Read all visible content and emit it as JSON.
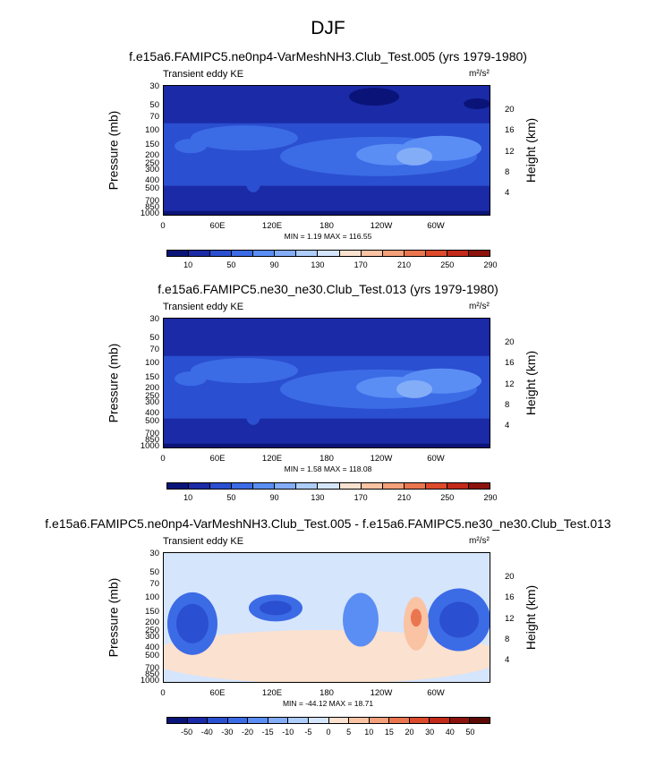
{
  "title": "DJF",
  "y_ticks_left": [
    "30",
    "50",
    "70",
    "100",
    "150",
    "200",
    "250",
    "300",
    "400",
    "500",
    "700",
    "850",
    "1000"
  ],
  "y_ticks_right": [
    "20",
    "16",
    "12",
    "8",
    "4"
  ],
  "x_ticks": [
    "0",
    "60E",
    "120E",
    "180",
    "120W",
    "60W"
  ],
  "ylabel_left": "Pressure (mb)",
  "ylabel_right": "Height (km)",
  "colors": {
    "kinetic": [
      "#0a1478",
      "#1b2aa6",
      "#2a4fd0",
      "#3c6be6",
      "#5a8ef5",
      "#84adf8",
      "#aecdfb",
      "#d5e5fc",
      "#fbe1cf",
      "#f9c3a4",
      "#f4a07a",
      "#ea7650",
      "#dc4b2c",
      "#c22a1a",
      "#8c130c"
    ],
    "diff": [
      "#0a1478",
      "#1b2aa6",
      "#2a4fd0",
      "#3c6be6",
      "#5a8ef5",
      "#84adf8",
      "#aecdfb",
      "#d5e5fc",
      "#fbe1cf",
      "#f9c3a4",
      "#f4a07a",
      "#ea7650",
      "#dc4b2c",
      "#c22a1a",
      "#8c130c",
      "#5c0a05"
    ]
  },
  "chart_data": [
    {
      "type": "heatmap",
      "title": "f.e15a6.FAMIPC5.ne0np4-VarMeshNH3.Club_Test.005 (yrs 1979-1980)",
      "left_label": "Transient eddy KE",
      "units": "m²/s²",
      "stats": "MIN =   1.19  MAX = 116.55",
      "x_range": [
        0,
        360
      ],
      "pressure_range_mb": [
        30,
        1000
      ],
      "colorbar_labels": [
        "10",
        "50",
        "90",
        "130",
        "170",
        "210",
        "250",
        "290"
      ],
      "regions": [
        {
          "name": "upper-background",
          "level": 0
        },
        {
          "name": "main-band",
          "level": 2
        },
        {
          "name": "jet-core-east",
          "level": 5
        },
        {
          "name": "jet-core-mid",
          "level": 4
        },
        {
          "name": "lower-band",
          "level": 1
        }
      ]
    },
    {
      "type": "heatmap",
      "title": "f.e15a6.FAMIPC5.ne30_ne30.Club_Test.013 (yrs 1979-1980)",
      "left_label": "Transient eddy KE",
      "units": "m²/s²",
      "stats": "MIN =   1.58  MAX = 118.08",
      "x_range": [
        0,
        360
      ],
      "pressure_range_mb": [
        30,
        1000
      ],
      "colorbar_labels": [
        "10",
        "50",
        "90",
        "130",
        "170",
        "210",
        "250",
        "290"
      ],
      "regions": [
        {
          "name": "upper-background",
          "level": 1
        },
        {
          "name": "main-band",
          "level": 2
        },
        {
          "name": "jet-core-east",
          "level": 5
        },
        {
          "name": "jet-core-mid",
          "level": 4
        },
        {
          "name": "lower-band",
          "level": 1
        }
      ]
    },
    {
      "type": "heatmap",
      "title": "f.e15a6.FAMIPC5.ne0np4-VarMeshNH3.Club_Test.005 - f.e15a6.FAMIPC5.ne30_ne30.Club_Test.013",
      "left_label": "Transient eddy KE",
      "units": "m²/s²",
      "stats": "MIN = -44.12  MAX =  18.71",
      "x_range": [
        0,
        360
      ],
      "pressure_range_mb": [
        30,
        1000
      ],
      "colorbar_labels": [
        "-50",
        "-40",
        "-30",
        "-20",
        "-15",
        "-10",
        "-5",
        "0",
        "5",
        "10",
        "15",
        "20",
        "30",
        "40",
        "50"
      ]
    }
  ]
}
